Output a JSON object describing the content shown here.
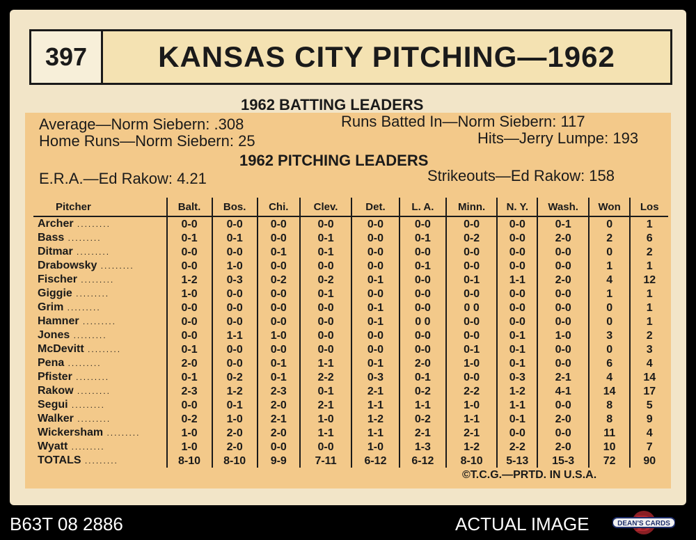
{
  "card": {
    "number": "397",
    "title": "KANSAS CITY PITCHING—1962"
  },
  "batting": {
    "heading": "1962 BATTING LEADERS",
    "line1_left": "Average—Norm Siebern: .308",
    "line1_right": "Runs Batted In—Norm Siebern: 117",
    "line2_left": "Home Runs—Norm Siebern: 25",
    "line2_right": "Hits—Jerry Lumpe: 193"
  },
  "pitching": {
    "heading": "1962 PITCHING LEADERS",
    "left": "E.R.A.—Ed Rakow: 4.21",
    "right": "Strikeouts—Ed Rakow: 158"
  },
  "table": {
    "headers": [
      "Pitcher",
      "Balt.",
      "Bos.",
      "Chi.",
      "Clev.",
      "Det.",
      "L. A.",
      "Minn.",
      "N. Y.",
      "Wash.",
      "Won",
      "Los"
    ],
    "rows": [
      [
        "Archer",
        "0-0",
        "0-0",
        "0-0",
        "0-0",
        "0-0",
        "0-0",
        "0-0",
        "0-0",
        "0-1",
        "0",
        "1"
      ],
      [
        "Bass",
        "0-1",
        "0-1",
        "0-0",
        "0-1",
        "0-0",
        "0-1",
        "0-2",
        "0-0",
        "2-0",
        "2",
        "6"
      ],
      [
        "Ditmar",
        "0-0",
        "0-0",
        "0-1",
        "0-1",
        "0-0",
        "0-0",
        "0-0",
        "0-0",
        "0-0",
        "0",
        "2"
      ],
      [
        "Drabowsky",
        "0-0",
        "1-0",
        "0-0",
        "0-0",
        "0-0",
        "0-1",
        "0-0",
        "0-0",
        "0-0",
        "1",
        "1"
      ],
      [
        "Fischer",
        "1-2",
        "0-3",
        "0-2",
        "0-2",
        "0-1",
        "0-0",
        "0-1",
        "1-1",
        "2-0",
        "4",
        "12"
      ],
      [
        "Giggie",
        "1-0",
        "0-0",
        "0-0",
        "0-1",
        "0-0",
        "0-0",
        "0-0",
        "0-0",
        "0-0",
        "1",
        "1"
      ],
      [
        "Grim",
        "0-0",
        "0-0",
        "0-0",
        "0-0",
        "0-1",
        "0-0",
        "0 0",
        "0-0",
        "0-0",
        "0",
        "1"
      ],
      [
        "Hamner",
        "0-0",
        "0-0",
        "0-0",
        "0-0",
        "0-1",
        "0 0",
        "0-0",
        "0-0",
        "0-0",
        "0",
        "1"
      ],
      [
        "Jones",
        "0-0",
        "1-1",
        "1-0",
        "0-0",
        "0-0",
        "0-0",
        "0-0",
        "0-1",
        "1-0",
        "3",
        "2"
      ],
      [
        "McDevitt",
        "0-1",
        "0-0",
        "0-0",
        "0-0",
        "0-0",
        "0-0",
        "0-1",
        "0-1",
        "0-0",
        "0",
        "3"
      ],
      [
        "Pena",
        "2-0",
        "0-0",
        "0-1",
        "1-1",
        "0-1",
        "2-0",
        "1-0",
        "0-1",
        "0-0",
        "6",
        "4"
      ],
      [
        "Pfister",
        "0-1",
        "0-2",
        "0-1",
        "2-2",
        "0-3",
        "0-1",
        "0-0",
        "0-3",
        "2-1",
        "4",
        "14"
      ],
      [
        "Rakow",
        "2-3",
        "1-2",
        "2-3",
        "0-1",
        "2-1",
        "0-2",
        "2-2",
        "1-2",
        "4-1",
        "14",
        "17"
      ],
      [
        "Segui",
        "0-0",
        "0-1",
        "2-0",
        "2-1",
        "1-1",
        "1-1",
        "1-0",
        "1-1",
        "0-0",
        "8",
        "5"
      ],
      [
        "Walker",
        "0-2",
        "1-0",
        "2-1",
        "1-0",
        "1-2",
        "0-2",
        "1-1",
        "0-1",
        "2-0",
        "8",
        "9"
      ],
      [
        "Wickersham",
        "1-0",
        "2-0",
        "2-0",
        "1-1",
        "1-1",
        "2-1",
        "2-1",
        "0-0",
        "0-0",
        "11",
        "4"
      ],
      [
        "Wyatt",
        "1-0",
        "2-0",
        "0-0",
        "0-0",
        "1-0",
        "1-3",
        "1-2",
        "2-2",
        "2-0",
        "10",
        "7"
      ],
      [
        "TOTALS",
        "8-10",
        "8-10",
        "9-9",
        "7-11",
        "6-12",
        "6-12",
        "8-10",
        "5-13",
        "15-3",
        "72",
        "90"
      ]
    ]
  },
  "footer": "©T.C.G.—PRTD. IN U.S.A.",
  "bottom_left": "B63T 08 2886",
  "bottom_right": "ACTUAL IMAGE",
  "logo_text": "DEAN'S CARDS"
}
